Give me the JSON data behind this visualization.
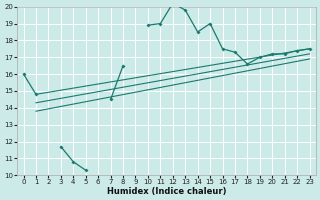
{
  "xlabel": "Humidex (Indice chaleur)",
  "bg_color": "#cceae8",
  "grid_color": "#ffffff",
  "line_color": "#1a7a6e",
  "xlim": [
    -0.5,
    23.5
  ],
  "ylim": [
    10,
    20
  ],
  "xticks": [
    0,
    1,
    2,
    3,
    4,
    5,
    6,
    7,
    8,
    9,
    10,
    11,
    12,
    13,
    14,
    15,
    16,
    17,
    18,
    19,
    20,
    21,
    22,
    23
  ],
  "yticks": [
    10,
    11,
    12,
    13,
    14,
    15,
    16,
    17,
    18,
    19,
    20
  ],
  "series_segments": [
    {
      "x": [
        0,
        1
      ],
      "y": [
        16.0,
        14.8
      ]
    },
    {
      "x": [
        3,
        4,
        5
      ],
      "y": [
        11.7,
        10.8,
        10.3
      ]
    },
    {
      "x": [
        7,
        8
      ],
      "y": [
        14.5,
        16.5
      ]
    },
    {
      "x": [
        10,
        11,
        12,
        13,
        14,
        15,
        16,
        17,
        18,
        19,
        20,
        21,
        22,
        23
      ],
      "y": [
        18.9,
        19.0,
        20.2,
        19.8,
        18.5,
        19.0,
        17.5,
        17.3,
        16.6,
        17.0,
        17.2,
        17.2,
        17.4,
        17.5
      ]
    }
  ],
  "regression_lines": [
    {
      "x0": 1,
      "y0": 14.8,
      "x1": 23,
      "y1": 17.5
    },
    {
      "x0": 1,
      "y0": 14.3,
      "x1": 23,
      "y1": 17.2
    },
    {
      "x0": 1,
      "y0": 13.8,
      "x1": 23,
      "y1": 16.9
    }
  ]
}
